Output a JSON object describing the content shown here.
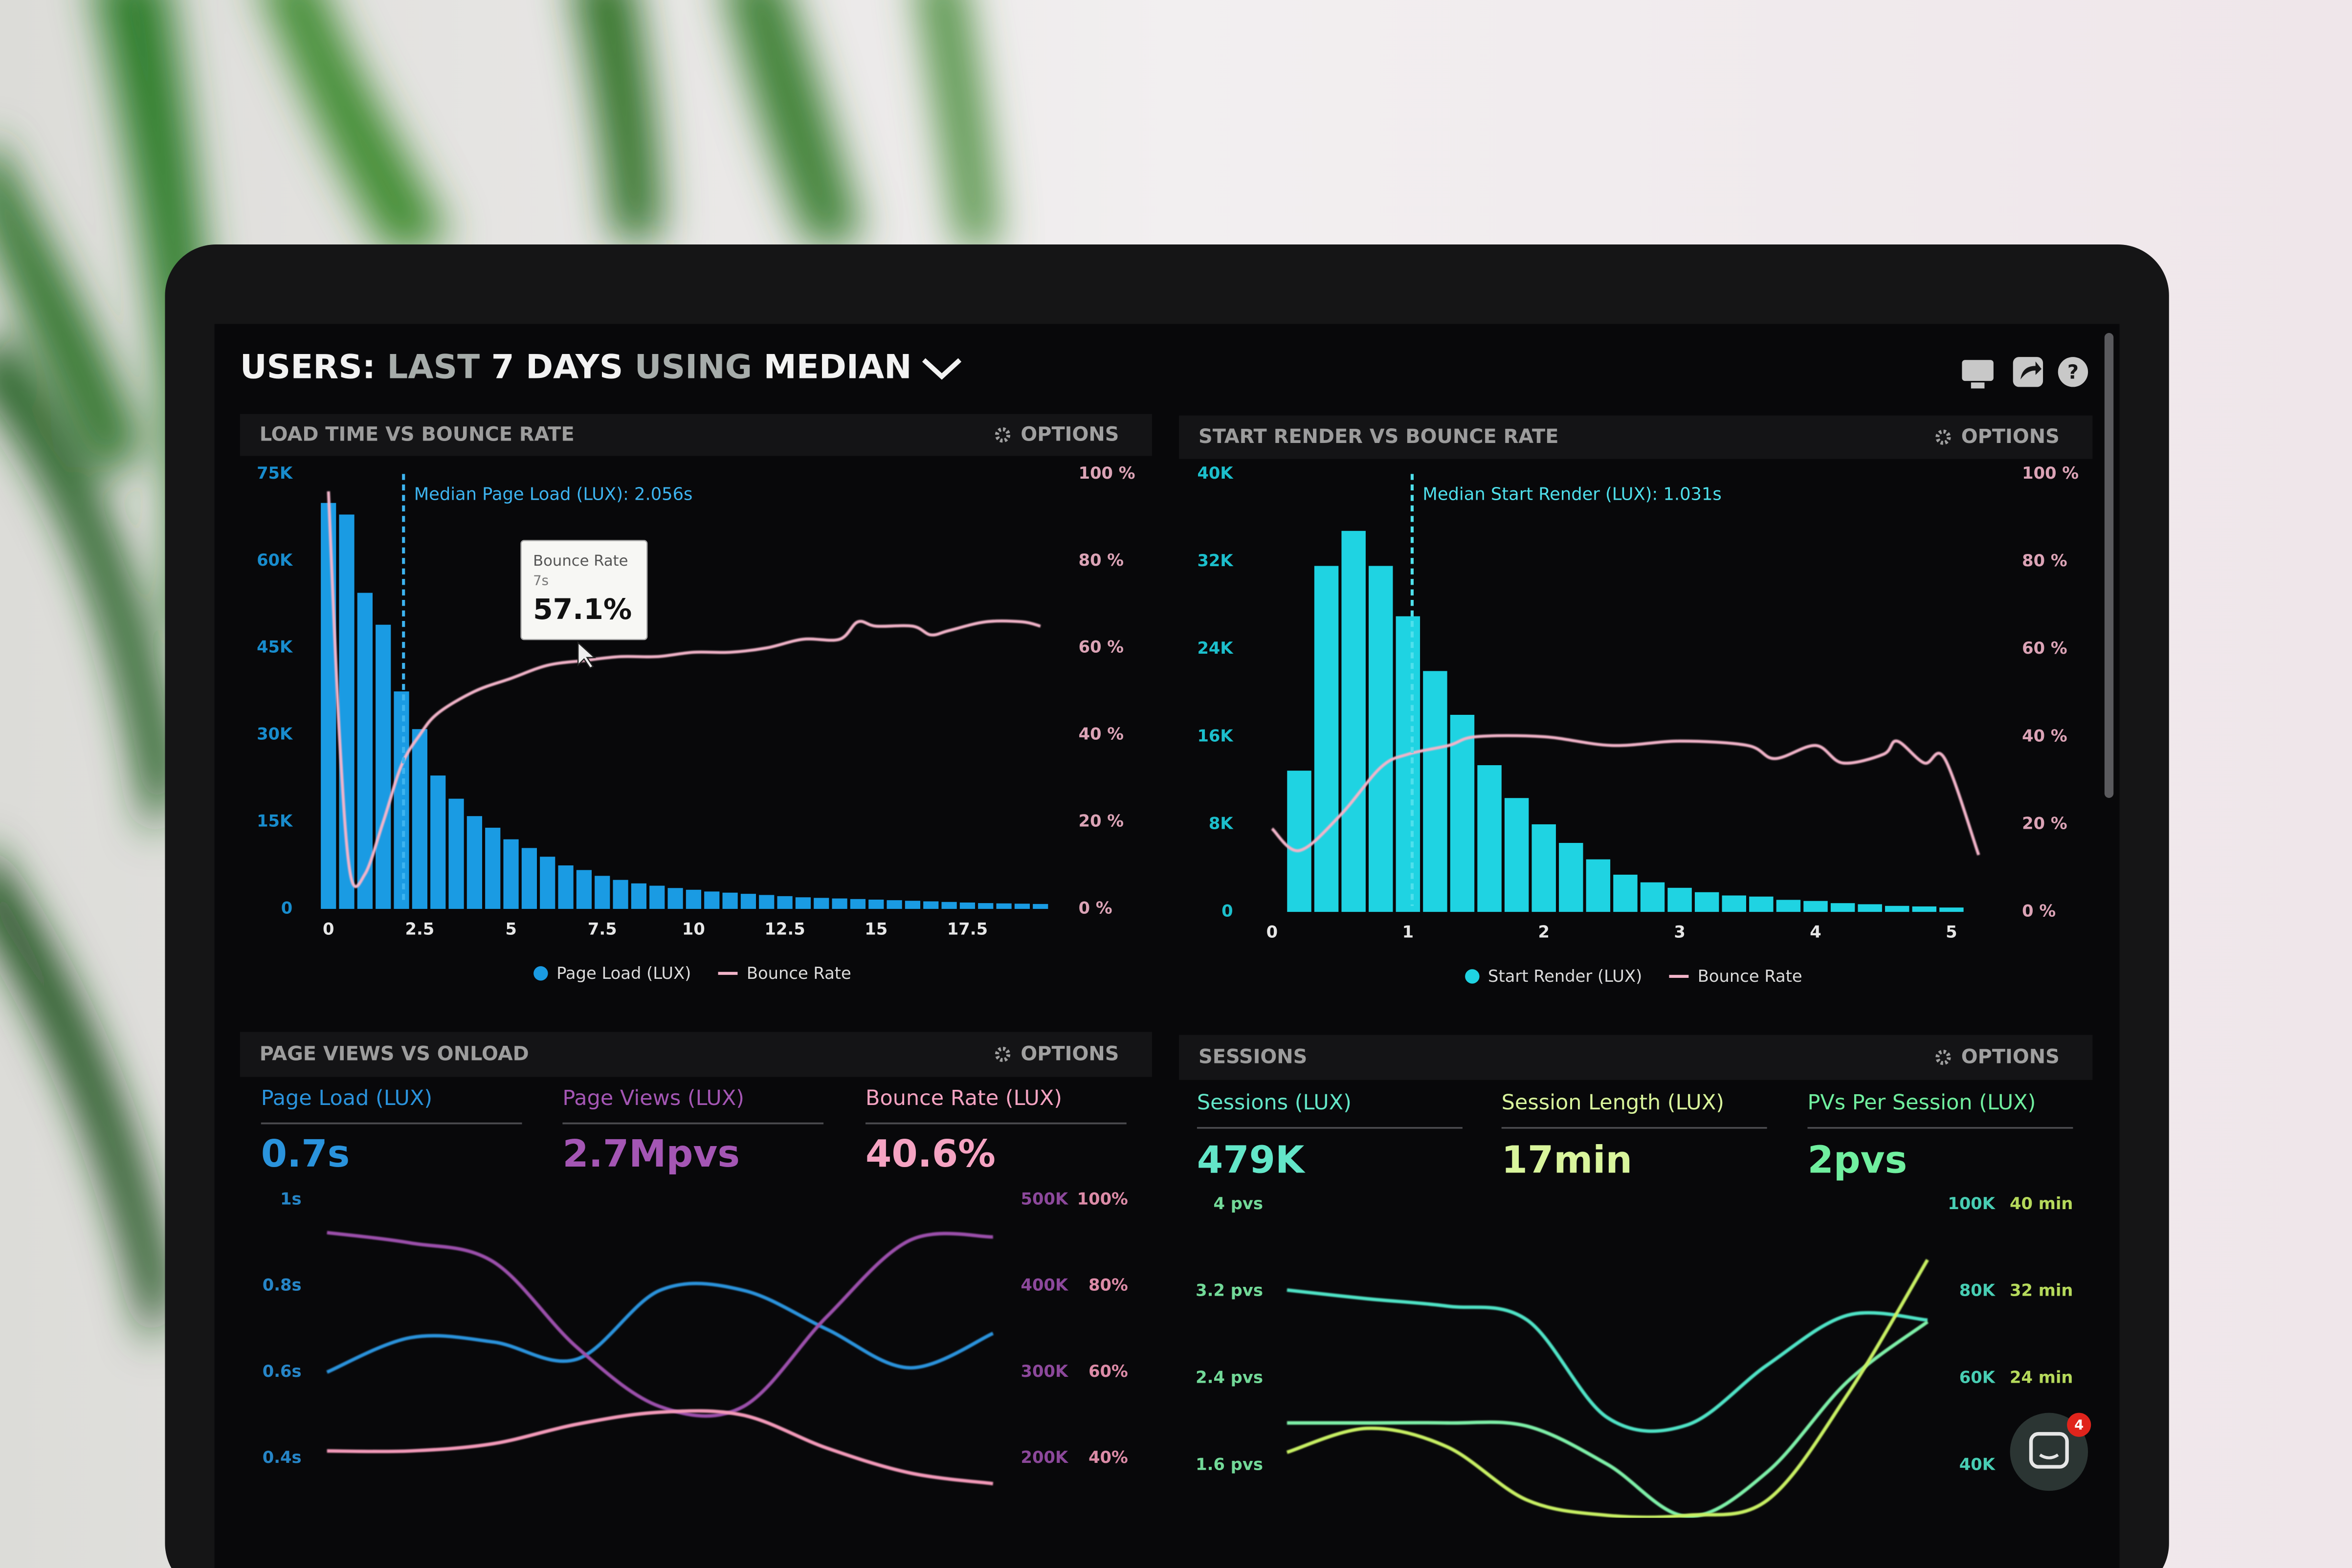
{
  "header": {
    "title": [
      "USERS:",
      "LAST",
      "7 DAYS",
      "USING",
      "MEDIAN"
    ],
    "chat_badge": 4
  },
  "chart_data": [
    {
      "type": "histogram",
      "title": "LOAD TIME VS BOUNCE RATE",
      "options": "OPTIONS",
      "bins": [
        -0.25,
        0.25,
        0.75,
        1.25,
        1.75,
        2.25,
        2.75,
        3.25,
        3.75,
        4.25,
        4.75,
        5.25,
        5.75,
        6.25,
        6.75,
        7.25,
        7.75,
        8.25,
        8.75,
        9.25,
        9.75,
        10.25,
        10.75,
        11.25,
        11.75,
        12.25,
        12.75,
        13.25,
        13.75,
        14.25,
        14.75,
        15.25,
        15.75,
        16.25,
        16.75,
        17.25,
        17.75,
        18.25,
        18.75,
        19.25,
        19.75
      ],
      "series": [
        {
          "name": "Page Load (LUX)",
          "color": "#1a9be3",
          "values": [
            70000,
            68000,
            54500,
            49000,
            37500,
            31000,
            23000,
            19000,
            16000,
            14000,
            12000,
            10500,
            9000,
            7500,
            6700,
            5700,
            5000,
            4400,
            4000,
            3600,
            3300,
            3000,
            2800,
            2600,
            2400,
            2200,
            2000,
            1900,
            1800,
            1700,
            1600,
            1500,
            1400,
            1300,
            1200,
            1100,
            1000,
            950,
            900,
            850
          ]
        },
        {
          "name": "Bounce Rate",
          "color": "#f2b4c9",
          "axis": "y2",
          "x": [
            0,
            0.3,
            0.6,
            1,
            1.5,
            2,
            2.5,
            3,
            4,
            5,
            6,
            7,
            8,
            9,
            10,
            11,
            12,
            13,
            14,
            14.5,
            15,
            16,
            16.5,
            17,
            18,
            19,
            19.5
          ],
          "values": [
            96,
            40,
            8,
            8,
            20,
            33,
            40,
            45,
            50,
            53,
            56,
            57.1,
            58,
            58,
            59,
            59,
            60,
            62,
            62,
            66,
            65,
            65,
            63,
            64,
            66,
            66,
            65
          ]
        }
      ],
      "xlim": [
        -0.5,
        20
      ],
      "xticks": [
        0,
        2.5,
        5,
        7.5,
        10,
        12.5,
        15,
        17.5
      ],
      "ylim": [
        0,
        75000
      ],
      "yticks": [
        0,
        {
          "value": 15000,
          "label": "15K"
        },
        {
          "value": 30000,
          "label": "30K"
        },
        {
          "value": 45000,
          "label": "45K"
        },
        {
          "value": 60000,
          "label": "60K"
        },
        {
          "value": 75000,
          "label": "75K"
        }
      ],
      "y2lim": [
        0,
        100
      ],
      "y2ticks": [
        {
          "value": 0,
          "label": "0 %"
        },
        {
          "value": 20,
          "label": "20 %"
        },
        {
          "value": 40,
          "label": "40 %"
        },
        {
          "value": 60,
          "label": "60 %"
        },
        {
          "value": 80,
          "label": "80 %"
        },
        {
          "value": 100,
          "label": "100 %"
        }
      ],
      "annotations": [
        {
          "text": "Median Page Load (LUX): 2.056s",
          "x": 2.056,
          "color": "#3db4f0"
        }
      ],
      "tooltip": {
        "title": "Bounce Rate",
        "subtitle": "7s",
        "x": 7,
        "value": 57.1,
        "label": "57.1%"
      }
    },
    {
      "type": "histogram",
      "title": "START RENDER VS BOUNCE RATE",
      "options": "OPTIONS",
      "bins": [
        0.1,
        0.3,
        0.5,
        0.7,
        0.9,
        1.1,
        1.3,
        1.5,
        1.7,
        1.9,
        2.1,
        2.3,
        2.5,
        2.7,
        2.9,
        3.1,
        3.3,
        3.5,
        3.7,
        3.9,
        4.1,
        4.3,
        4.5,
        4.7,
        4.9,
        5.1
      ],
      "series": [
        {
          "name": "Start Render (LUX)",
          "color": "#1fd3e2",
          "values": [
            12900,
            31600,
            34800,
            31600,
            27000,
            22000,
            18000,
            13400,
            10400,
            8000,
            6300,
            4800,
            3400,
            2700,
            2200,
            1800,
            1500,
            1400,
            1100,
            1000,
            800,
            700,
            550,
            500,
            400
          ]
        },
        {
          "name": "Bounce Rate",
          "color": "#f2b4c9",
          "axis": "y2",
          "x": [
            0,
            0.2,
            0.5,
            0.8,
            1,
            1.3,
            1.5,
            2,
            2.5,
            3,
            3.5,
            3.7,
            4,
            4.2,
            4.5,
            4.6,
            4.8,
            4.95,
            5.2
          ],
          "values": [
            19,
            14,
            22,
            33,
            36,
            38,
            40,
            40,
            38,
            39,
            38,
            35,
            38,
            34,
            36,
            39,
            34,
            35,
            13
          ]
        }
      ],
      "xlim": [
        -0.4,
        5.2
      ],
      "xticks": [
        0,
        1,
        2,
        3,
        4,
        5
      ],
      "ylim": [
        0,
        40000
      ],
      "yticks": [
        0,
        {
          "value": 8000,
          "label": "8K"
        },
        {
          "value": 16000,
          "label": "16K"
        },
        {
          "value": 24000,
          "label": "24K"
        },
        {
          "value": 32000,
          "label": "32K"
        },
        {
          "value": 40000,
          "label": "40K"
        }
      ],
      "y2lim": [
        0,
        100
      ],
      "y2ticks": [
        {
          "value": 0,
          "label": "0 %"
        },
        {
          "value": 20,
          "label": "20 %"
        },
        {
          "value": 40,
          "label": "40 %"
        },
        {
          "value": 60,
          "label": "60 %"
        },
        {
          "value": 80,
          "label": "80 %"
        },
        {
          "value": 100,
          "label": "100 %"
        }
      ],
      "annotations": [
        {
          "text": "Median Start Render (LUX): 1.031s",
          "x": 1.031,
          "color": "#4fe0ec"
        }
      ]
    },
    {
      "type": "line",
      "title": "PAGE VIEWS VS ONLOAD",
      "options": "OPTIONS",
      "metrics": [
        {
          "label": "Page Load (LUX)",
          "value": "0.7s",
          "color": "#2a93dc"
        },
        {
          "label": "Page Views (LUX)",
          "value": "2.7Mpvs",
          "color": "#a456b4"
        },
        {
          "label": "Bounce Rate (LUX)",
          "value": "40.6%",
          "color": "#f5a3c2"
        }
      ],
      "series": [
        {
          "color": "#2a93dc",
          "values": [
            0.6,
            0.68,
            0.67,
            0.63,
            0.79,
            0.79,
            0.7,
            0.61,
            0.69
          ]
        },
        {
          "color": "#9b4fab",
          "axis": "y2",
          "values": [
            462000,
            450000,
            428000,
            329000,
            260000,
            260000,
            364000,
            453000,
            457000
          ]
        },
        {
          "color": "#f39ab9",
          "axis": "y3",
          "values": [
            41.7,
            41.7,
            43.4,
            47.9,
            50.7,
            50,
            42.4,
            36.6,
            34.1
          ]
        }
      ],
      "ylim": [
        0.3,
        1
      ],
      "yticks": [
        {
          "value": 1,
          "label": "1s"
        },
        {
          "value": 0.8,
          "label": "0.8s"
        },
        {
          "value": 0.6,
          "label": "0.6s"
        },
        {
          "value": 0.4,
          "label": "0.4s"
        }
      ],
      "y2lim": [
        150000,
        500000
      ],
      "y2ticks": [
        {
          "value": 500000,
          "label": "500K"
        },
        {
          "value": 400000,
          "label": "400K"
        },
        {
          "value": 300000,
          "label": "300K"
        },
        {
          "value": 200000,
          "label": "200K"
        }
      ],
      "y3lim": [
        30,
        100
      ],
      "y3ticks": [
        {
          "value": 100,
          "label": "100%"
        },
        {
          "value": 80,
          "label": "80%"
        },
        {
          "value": 60,
          "label": "60%"
        },
        {
          "value": 40,
          "label": "40%"
        }
      ]
    },
    {
      "type": "line",
      "title": "SESSIONS",
      "options": "OPTIONS",
      "metrics": [
        {
          "label": "Sessions (LUX)",
          "value": "479K",
          "color": "#63e6c8"
        },
        {
          "label": "Session Length (LUX)",
          "value": "17min",
          "color": "#d9f59c"
        },
        {
          "label": "PVs Per Session (LUX)",
          "value": "2pvs",
          "color": "#70ef9f"
        }
      ],
      "series": [
        {
          "color": "#4fe3c6",
          "axis": "y2",
          "values": [
            80300,
            78300,
            76600,
            73400,
            51000,
            49300,
            63100,
            74500,
            73400
          ]
        },
        {
          "color": "#7ef0a8",
          "values": [
            1.99,
            1.99,
            1.99,
            1.96,
            1.61,
            1.13,
            1.54,
            2.37,
            2.92
          ]
        },
        {
          "color": "#c8f064",
          "axis": "y3",
          "values": [
            17.2,
            19.4,
            17.7,
            12.8,
            11.4,
            11.4,
            12.8,
            22.5,
            34.9
          ]
        }
      ],
      "ylim": [
        1.2,
        4
      ],
      "yticks": [
        {
          "value": 4,
          "label": "4 pvs"
        },
        {
          "value": 3.2,
          "label": "3.2 pvs"
        },
        {
          "value": 2.4,
          "label": "2.4 pvs"
        },
        {
          "value": 1.6,
          "label": "1.6 pvs"
        }
      ],
      "y2lim": [
        30000,
        100000
      ],
      "y2ticks": [
        {
          "value": 100000,
          "label": "100K"
        },
        {
          "value": 80000,
          "label": "80K"
        },
        {
          "value": 60000,
          "label": "60K"
        },
        {
          "value": 40000,
          "label": "40K"
        }
      ],
      "y3lim": [
        12,
        40
      ],
      "y3ticks": [
        {
          "value": 40,
          "label": "40 min"
        },
        {
          "value": 32,
          "label": "32 min"
        },
        {
          "value": 24,
          "label": "24 min"
        }
      ]
    }
  ]
}
